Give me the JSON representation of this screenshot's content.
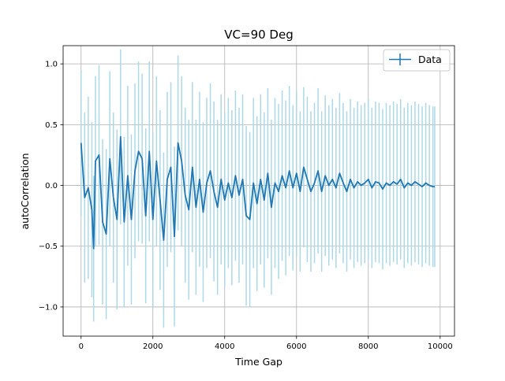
{
  "chart_data": {
    "type": "line",
    "title": "VC=90 Deg",
    "xlabel": "Time Gap",
    "ylabel": "autoCorrelation",
    "xlim": [
      -500,
      10400
    ],
    "ylim": [
      -1.24,
      1.15
    ],
    "xticks": [
      0,
      2000,
      4000,
      6000,
      8000,
      10000
    ],
    "yticks": [
      -1.0,
      -0.5,
      0.0,
      0.5,
      1.0
    ],
    "xtick_labels": [
      "0",
      "2000",
      "4000",
      "6000",
      "8000",
      "10000"
    ],
    "ytick_labels": [
      "−1.0",
      "−0.5",
      "0.0",
      "0.5",
      "1.0"
    ],
    "grid": true,
    "legend": {
      "location": "top-right",
      "entries": [
        "Data"
      ]
    },
    "colors": {
      "line": "#1f77b4",
      "errorbar": "#add8e6",
      "grid": "#b0b0b0"
    },
    "series": [
      {
        "name": "Data",
        "x": [
          0,
          100,
          200,
          300,
          350,
          400,
          500,
          600,
          700,
          800,
          900,
          1000,
          1100,
          1200,
          1300,
          1400,
          1500,
          1600,
          1700,
          1800,
          1900,
          2000,
          2100,
          2200,
          2300,
          2400,
          2500,
          2600,
          2700,
          2800,
          2900,
          3000,
          3100,
          3200,
          3300,
          3400,
          3500,
          3600,
          3700,
          3800,
          3900,
          4000,
          4100,
          4200,
          4300,
          4400,
          4500,
          4600,
          4700,
          4800,
          4900,
          5000,
          5100,
          5200,
          5300,
          5400,
          5500,
          5600,
          5700,
          5800,
          5900,
          6000,
          6100,
          6200,
          6300,
          6400,
          6500,
          6600,
          6700,
          6800,
          6900,
          7000,
          7100,
          7200,
          7300,
          7400,
          7500,
          7600,
          7700,
          7800,
          7900,
          8000,
          8100,
          8200,
          8300,
          8400,
          8500,
          8600,
          8700,
          8800,
          8900,
          9000,
          9100,
          9200,
          9300,
          9400,
          9500,
          9600,
          9700,
          9800,
          9850
        ],
        "values": [
          0.35,
          -0.1,
          -0.02,
          -0.2,
          -0.52,
          0.2,
          0.25,
          -0.3,
          -0.4,
          0.22,
          -0.1,
          -0.28,
          0.4,
          -0.3,
          0.08,
          -0.28,
          0.12,
          0.28,
          0.22,
          -0.25,
          0.28,
          -0.28,
          0.2,
          -0.12,
          -0.45,
          0.05,
          0.15,
          -0.42,
          0.35,
          0.2,
          -0.08,
          -0.2,
          0.15,
          -0.18,
          0.05,
          -0.22,
          0.02,
          0.12,
          -0.05,
          -0.18,
          0.05,
          -0.12,
          0.02,
          -0.1,
          0.08,
          -0.08,
          0.05,
          -0.25,
          -0.28,
          0.02,
          -0.15,
          0.05,
          -0.12,
          0.1,
          -0.18,
          0.02,
          -0.05,
          0.08,
          -0.02,
          0.12,
          -0.02,
          0.1,
          -0.05,
          0.15,
          0.05,
          -0.05,
          0.02,
          0.12,
          -0.05,
          0.08,
          0.0,
          0.05,
          -0.02,
          0.1,
          0.02,
          -0.05,
          0.05,
          -0.02,
          0.03,
          0.0,
          0.02,
          0.05,
          -0.02,
          0.03,
          0.02,
          -0.03,
          0.02,
          0.0,
          0.03,
          0.01,
          0.05,
          -0.02,
          0.02,
          0.0,
          0.03,
          0.01,
          -0.01,
          0.02,
          0.0,
          -0.01,
          -0.01
        ],
        "error": [
          0.6,
          0.7,
          0.75,
          0.72,
          0.6,
          0.7,
          0.74,
          0.68,
          0.7,
          0.72,
          0.7,
          0.74,
          0.72,
          0.7,
          0.74,
          0.7,
          0.72,
          0.74,
          0.7,
          0.72,
          0.74,
          0.72,
          0.7,
          0.74,
          0.72,
          0.72,
          0.7,
          0.74,
          0.72,
          0.7,
          0.72,
          0.74,
          0.7,
          0.72,
          0.72,
          0.74,
          0.7,
          0.72,
          0.74,
          0.72,
          0.7,
          0.72,
          0.7,
          0.72,
          0.7,
          0.72,
          0.7,
          0.74,
          0.72,
          0.7,
          0.72,
          0.7,
          0.72,
          0.7,
          0.72,
          0.7,
          0.72,
          0.7,
          0.72,
          0.7,
          0.68,
          0.68,
          0.66,
          0.66,
          0.68,
          0.66,
          0.66,
          0.68,
          0.66,
          0.66,
          0.66,
          0.66,
          0.66,
          0.66,
          0.66,
          0.66,
          0.66,
          0.66,
          0.66,
          0.66,
          0.66,
          0.66,
          0.66,
          0.66,
          0.66,
          0.66,
          0.66,
          0.66,
          0.66,
          0.66,
          0.66,
          0.66,
          0.66,
          0.66,
          0.66,
          0.66,
          0.66,
          0.66,
          0.66,
          0.66,
          0.66
        ]
      }
    ]
  }
}
